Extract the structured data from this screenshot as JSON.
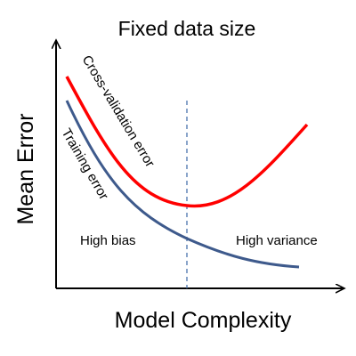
{
  "title": "Fixed data size",
  "x_axis_label": "Model Complexity",
  "y_axis_label": "Mean Error",
  "curves": {
    "cross_validation_label": "Cross-validation error",
    "training_label": "Training error"
  },
  "regions": {
    "left": "High bias",
    "right": "High variance"
  },
  "colors": {
    "cross_validation": "#ff0000",
    "training": "#3e5a8c",
    "optimum_line": "#4a74ad",
    "axes": "#000000"
  }
}
